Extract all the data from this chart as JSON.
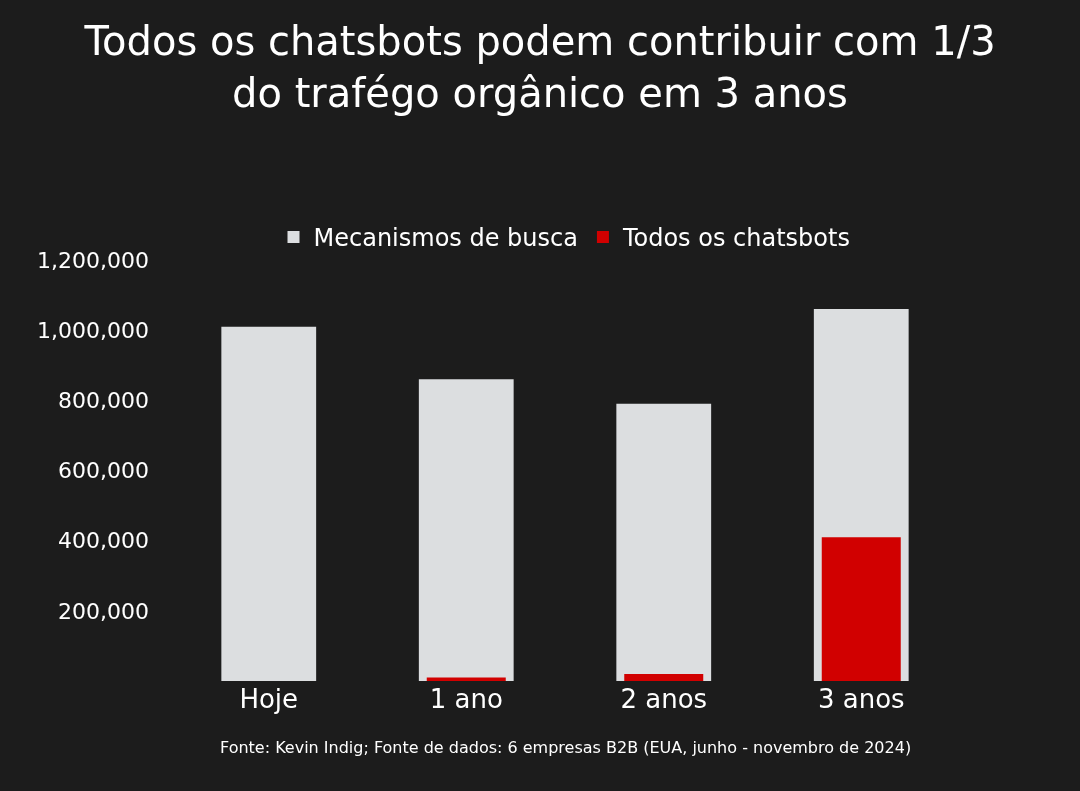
{
  "chart_data": {
    "type": "bar",
    "title": "Todos os chatsbots podem contribuir com 1/3\ndo trafégo orgânico em 3 anos",
    "categories": [
      "Hoje",
      "1 ano",
      "2 anos",
      "3 anos"
    ],
    "series": [
      {
        "name": "Mecanismos de busca",
        "color": "#dcdee0",
        "values": [
          1010000,
          860000,
          790000,
          1060000
        ]
      },
      {
        "name": "Todos os chatsbots",
        "color": "#d10000",
        "values": [
          null,
          10000,
          20000,
          410000
        ]
      }
    ],
    "ylim": [
      0,
      1200000
    ],
    "yticks": [
      {
        "value": 200000,
        "label": "200,000"
      },
      {
        "value": 400000,
        "label": "400,000"
      },
      {
        "value": 600000,
        "label": "600,000"
      },
      {
        "value": 800000,
        "label": "800,000"
      },
      {
        "value": 1000000,
        "label": "1,000,000"
      },
      {
        "value": 1200000,
        "label": "1,200,000"
      }
    ],
    "grid": false,
    "legend": "top",
    "annotations": [
      "Fonte: Kevin Indig; Fonte de dados: 6 empresas B2B (EUA, junho - novembro de 2024)"
    ]
  }
}
